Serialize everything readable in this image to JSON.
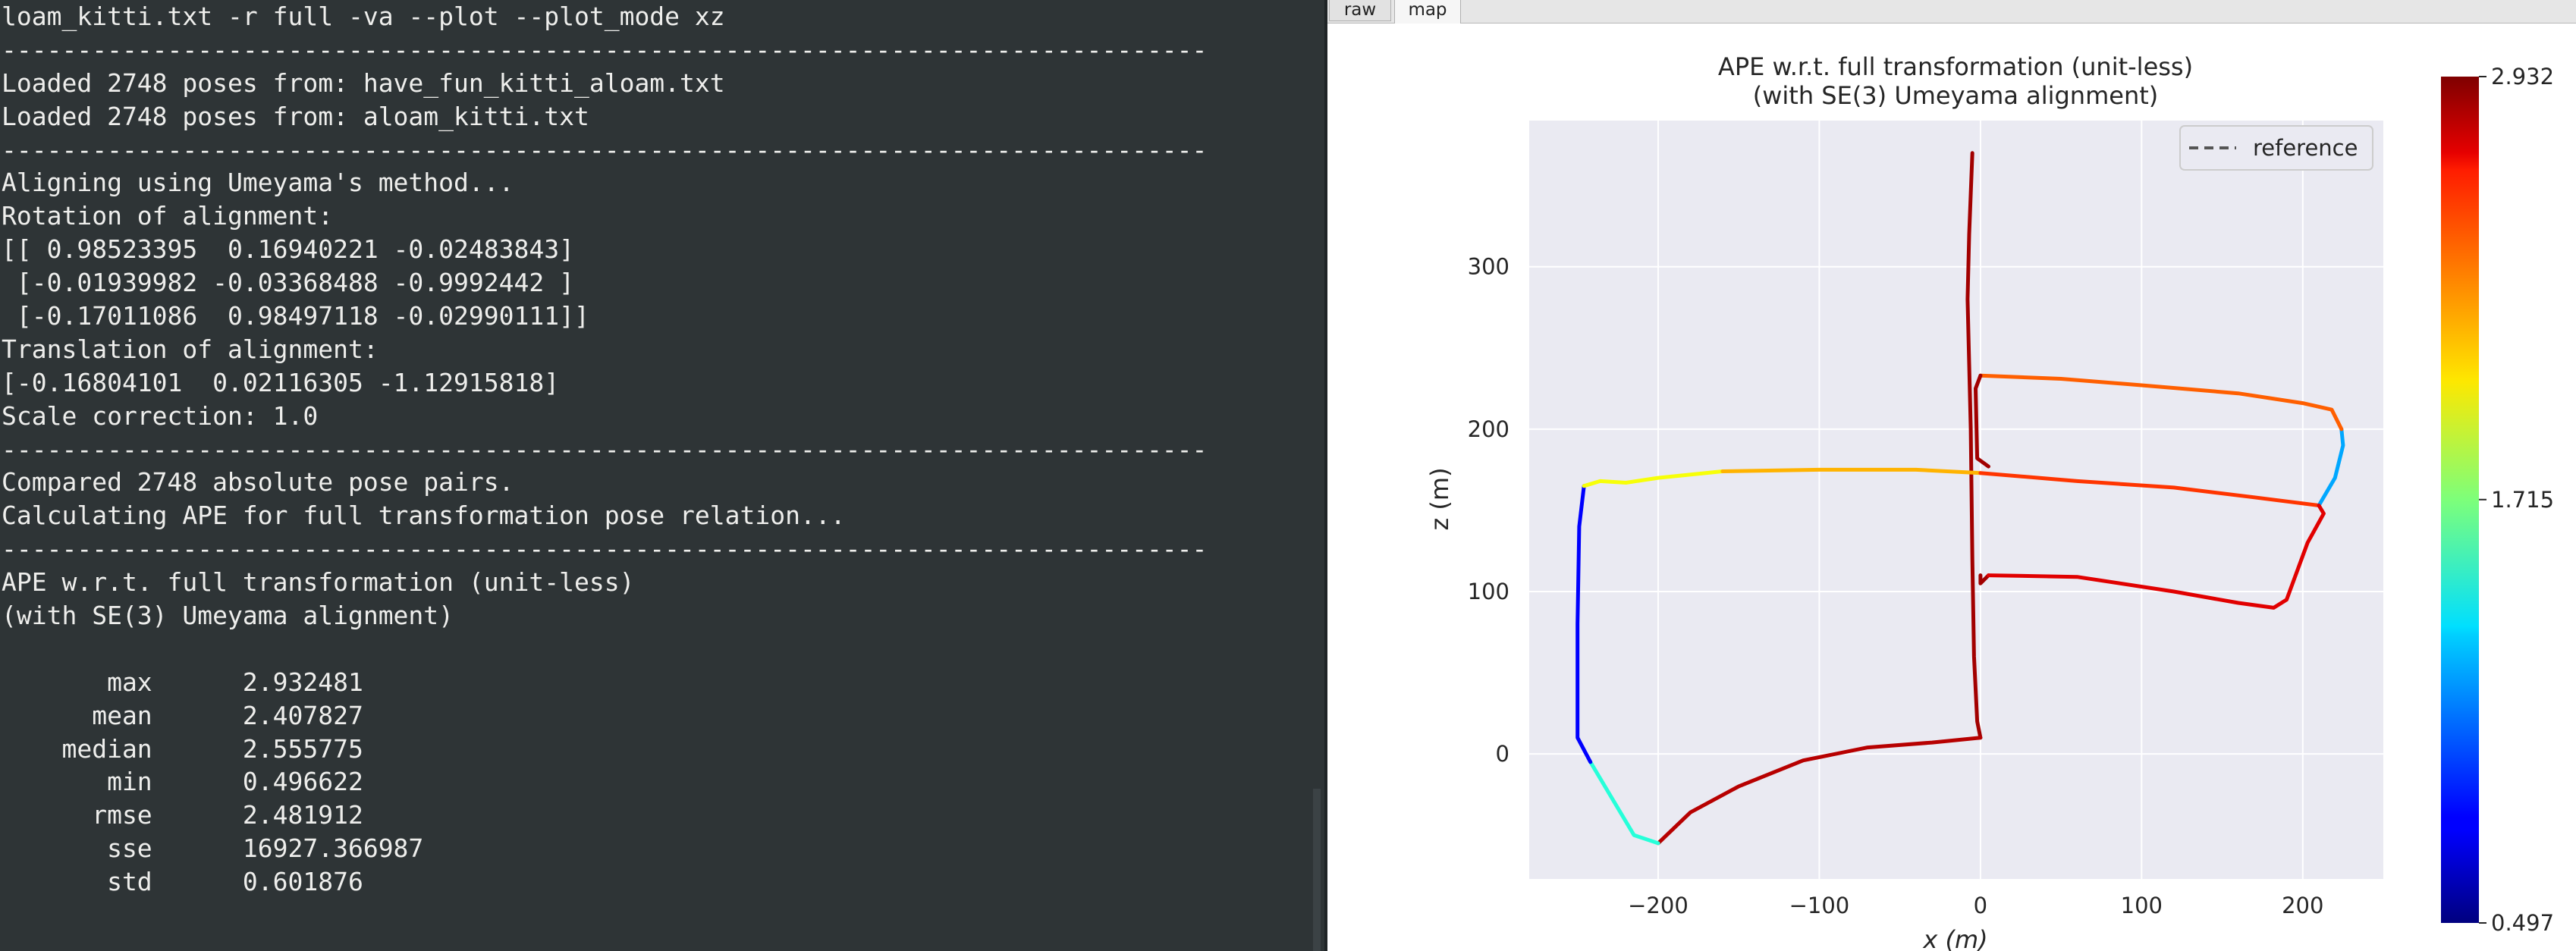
{
  "terminal": {
    "lines": [
      "loam_kitti.txt -r full -va --plot --plot_mode xz",
      "--------------------------------------------------------------------------------",
      "Loaded 2748 poses from: have_fun_kitti_aloam.txt",
      "Loaded 2748 poses from: aloam_kitti.txt",
      "--------------------------------------------------------------------------------",
      "Aligning using Umeyama's method...",
      "Rotation of alignment:",
      "[[ 0.98523395  0.16940221 -0.02483843]",
      " [-0.01939982 -0.03368488 -0.9992442 ]",
      " [-0.17011086  0.98497118 -0.02990111]]",
      "Translation of alignment:",
      "[-0.16804101  0.02116305 -1.12915818]",
      "Scale correction: 1.0",
      "--------------------------------------------------------------------------------",
      "Compared 2748 absolute pose pairs.",
      "Calculating APE for full transformation pose relation...",
      "--------------------------------------------------------------------------------",
      "APE w.r.t. full transformation (unit-less)",
      "(with SE(3) Umeyama alignment)",
      "",
      "       max      2.932481",
      "      mean      2.407827",
      "    median      2.555775",
      "       min      0.496622",
      "      rmse      2.481912",
      "       sse      16927.366987",
      "       std      0.601876"
    ]
  },
  "figure_window": {
    "tabs": [
      {
        "label": "raw",
        "active": false
      },
      {
        "label": "map",
        "active": true
      }
    ]
  },
  "colors": {
    "terminal_bg": "#2e3436",
    "terminal_fg": "#eeeeec",
    "axes_bg": "#eaeaf2",
    "grid": "#ffffff",
    "trajectory_main": "#b20f0f"
  },
  "chart_data": {
    "type": "line",
    "title": "APE w.r.t. full transformation (unit-less)",
    "subtitle": "(with SE(3) Umeyama alignment)",
    "xlabel": "x (m)",
    "ylabel": "z (m)",
    "xlim": [
      -280,
      250
    ],
    "ylim": [
      -77,
      390
    ],
    "xticks": [
      -200,
      -100,
      0,
      100,
      200
    ],
    "yticks": [
      0,
      100,
      200,
      300
    ],
    "xtick_labels": [
      "−200",
      "−100",
      "0",
      "100",
      "200"
    ],
    "ytick_labels": [
      "0",
      "100",
      "200",
      "300"
    ],
    "grid": true,
    "legend": {
      "entries": [
        "reference"
      ],
      "placement": "top-right",
      "style": "dashed"
    },
    "colorbar": {
      "min": 0.497,
      "mid": 1.715,
      "max": 2.932,
      "tick_labels": [
        "2.932",
        "1.715",
        "0.497"
      ],
      "colormap": "jet"
    },
    "series": [
      {
        "name": "reference",
        "segments": [
          {
            "ape": 2.85,
            "points": [
              [
                -5,
                370
              ],
              [
                -7,
                320
              ],
              [
                -8,
                280
              ],
              [
                -7,
                240
              ],
              [
                -6,
                200
              ],
              [
                -5,
                120
              ],
              [
                -4,
                60
              ],
              [
                -2,
                20
              ],
              [
                0,
                10
              ]
            ]
          },
          {
            "ape": 2.8,
            "points": [
              [
                0,
                10
              ],
              [
                -30,
                7
              ],
              [
                -70,
                4
              ],
              [
                -110,
                -4
              ],
              [
                -150,
                -20
              ],
              [
                -180,
                -36
              ],
              [
                -200,
                -55
              ]
            ]
          },
          {
            "ape": 1.5,
            "points": [
              [
                -200,
                -55
              ],
              [
                -215,
                -50
              ],
              [
                -230,
                -25
              ],
              [
                -242,
                -5
              ]
            ]
          },
          {
            "ape": 0.8,
            "points": [
              [
                -242,
                -5
              ],
              [
                -250,
                10
              ],
              [
                -250,
                80
              ],
              [
                -249,
                140
              ],
              [
                -246,
                165
              ]
            ]
          },
          {
            "ape": 2.0,
            "points": [
              [
                -246,
                165
              ],
              [
                -236,
                168
              ],
              [
                -220,
                167
              ],
              [
                -200,
                170
              ],
              [
                -160,
                174
              ]
            ]
          },
          {
            "ape": 2.2,
            "points": [
              [
                -160,
                174
              ],
              [
                -100,
                175
              ],
              [
                -40,
                175
              ],
              [
                0,
                173
              ]
            ]
          },
          {
            "ape": 2.5,
            "points": [
              [
                0,
                173
              ],
              [
                60,
                168
              ],
              [
                120,
                164
              ],
              [
                170,
                158
              ],
              [
                210,
                153
              ]
            ]
          },
          {
            "ape": 1.2,
            "points": [
              [
                210,
                153
              ],
              [
                220,
                170
              ],
              [
                225,
                190
              ],
              [
                224,
                200
              ]
            ]
          },
          {
            "ape": 2.4,
            "points": [
              [
                224,
                200
              ],
              [
                218,
                212
              ],
              [
                200,
                216
              ],
              [
                160,
                222
              ],
              [
                100,
                227
              ],
              [
                50,
                231
              ],
              [
                0,
                233
              ]
            ]
          },
          {
            "ape": 2.85,
            "points": [
              [
                0,
                233
              ],
              [
                -3,
                225
              ],
              [
                -2,
                182
              ],
              [
                5,
                177
              ]
            ]
          },
          {
            "ape": 2.85,
            "points": [
              [
                0,
                110
              ],
              [
                0,
                105
              ],
              [
                5,
                110
              ]
            ]
          },
          {
            "ape": 2.7,
            "points": [
              [
                5,
                110
              ],
              [
                60,
                109
              ],
              [
                120,
                100
              ],
              [
                160,
                93
              ],
              [
                182,
                90
              ],
              [
                190,
                95
              ],
              [
                203,
                130
              ],
              [
                213,
                148
              ],
              [
                210,
                153
              ]
            ]
          }
        ]
      }
    ]
  }
}
